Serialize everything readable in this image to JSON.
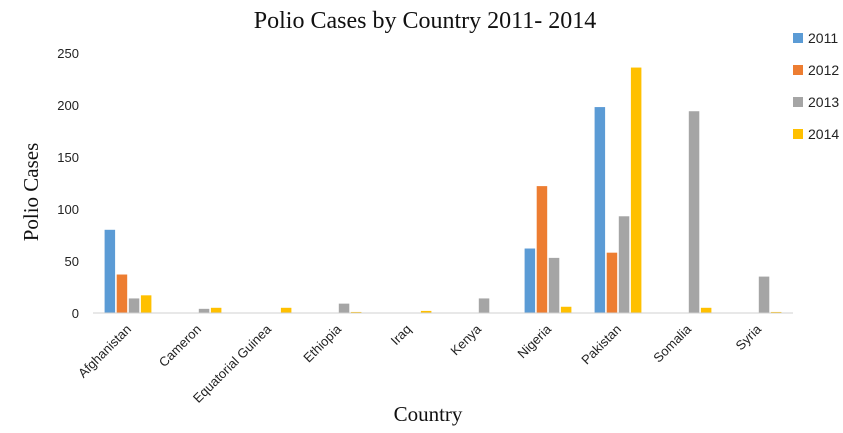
{
  "chart_data": {
    "type": "bar",
    "title": "Polio Cases by Country 2011- 2014",
    "xlabel": "Country",
    "ylabel": "Polio Cases",
    "ylim": [
      0,
      250
    ],
    "yticks": [
      "0",
      "50",
      "100",
      "150",
      "200",
      "250"
    ],
    "grid": false,
    "legend_position": "top-right",
    "categories": [
      "Afghanistan",
      "Cameron",
      "Equatorial Guinea",
      "Ethiopia",
      "Iraq",
      "Kenya",
      "Nigeria",
      "Pakistan",
      "Somalia",
      "Syria"
    ],
    "series": [
      {
        "name": "2011",
        "color": "#5b9bd5",
        "values": [
          80,
          0,
          0,
          0,
          0,
          0,
          62,
          198,
          0,
          0
        ]
      },
      {
        "name": "2012",
        "color": "#ed7d31",
        "values": [
          37,
          0,
          0,
          0,
          0,
          0,
          122,
          58,
          0,
          0
        ]
      },
      {
        "name": "2013",
        "color": "#a5a5a5",
        "values": [
          14,
          4,
          0,
          9,
          0,
          14,
          53,
          93,
          194,
          35
        ]
      },
      {
        "name": "2014",
        "color": "#ffc000",
        "values": [
          17,
          5,
          5,
          1,
          2,
          0,
          6,
          236,
          5,
          1
        ]
      }
    ]
  }
}
